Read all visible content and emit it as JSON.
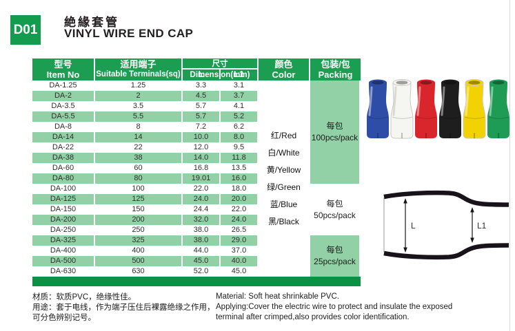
{
  "page": {
    "code": "D01",
    "title_zh": "絶緣套管",
    "title_en": "VINYL WIRE END CAP"
  },
  "theme": {
    "header_green": "#1b9e52",
    "light_green": "#92d1a5",
    "dark_green": "#0a9144",
    "code_box_green": "#149c4e"
  },
  "table": {
    "headers": {
      "item_no_zh": "型号",
      "item_no_en": "Item No",
      "terminals_zh": "适用端子",
      "terminals_en": "Suitable Terminals(sq)",
      "dimension": "尺寸Dimension(mm)",
      "dim_l": "L",
      "dim_l1": "L1",
      "color_zh": "颜色",
      "color_en": "Color",
      "packing_zh": "包装/包",
      "packing_en": "Packing"
    },
    "rows": [
      [
        "DA-1.25",
        "1.25",
        "3.3",
        "3.1"
      ],
      [
        "DA-2",
        "2",
        "4.5",
        "3.7"
      ],
      [
        "DA-3.5",
        "3.5",
        "5.7",
        "4.1"
      ],
      [
        "DA-5.5",
        "5.5",
        "5.7",
        "5.2"
      ],
      [
        "DA-8",
        "8",
        "7.2",
        "6.2"
      ],
      [
        "DA-14",
        "14",
        "10.0",
        "8.0"
      ],
      [
        "DA-22",
        "22",
        "12.0",
        "9.5"
      ],
      [
        "DA-38",
        "38",
        "14.0",
        "11.8"
      ],
      [
        "DA-60",
        "60",
        "16.8",
        "13.5"
      ],
      [
        "DA-80",
        "80",
        "19.01",
        "16.0"
      ],
      [
        "DA-100",
        "100",
        "22.0",
        "18.0"
      ],
      [
        "DA-125",
        "125",
        "24.0",
        "20.0"
      ],
      [
        "DA-150",
        "150",
        "24.4",
        "22.0"
      ],
      [
        "DA-200",
        "200",
        "32.0",
        "24.0"
      ],
      [
        "DA-250",
        "250",
        "38.0",
        "26.5"
      ],
      [
        "DA-325",
        "325",
        "38.0",
        "29.0"
      ],
      [
        "DA-400",
        "400",
        "44.0",
        "37.0"
      ],
      [
        "DA-500",
        "500",
        "45.0",
        "40.0"
      ],
      [
        "DA-630",
        "630",
        "52.0",
        "45.0"
      ]
    ],
    "colors": [
      "红/Red",
      "白/White",
      "黄/Yellow",
      "绿/Green",
      "蓝/Blue",
      "黑/Black"
    ],
    "packing": [
      {
        "label_zh": "每包",
        "label_en": "100pcs/pack",
        "rows": 10,
        "highlight": true
      },
      {
        "label_zh": "每包",
        "label_en": "50pcs/pack",
        "rows": 5,
        "highlight": false
      },
      {
        "label_zh": "每包",
        "label_en": "25pcs/pack",
        "rows": 4,
        "highlight": true
      }
    ]
  },
  "caps": [
    {
      "name": "blue",
      "color": "#2e4da6"
    },
    {
      "name": "white",
      "color": "#f5f5f1"
    },
    {
      "name": "red",
      "color": "#d8262c"
    },
    {
      "name": "black",
      "color": "#1e1e1e"
    },
    {
      "name": "yellow",
      "color": "#f3d203"
    },
    {
      "name": "green",
      "color": "#1e9b55"
    }
  ],
  "diagram": {
    "label_l": "L",
    "label_l1": "L1"
  },
  "notes": {
    "zh_line1": "材质：软质PVC，绝缘性佳。",
    "zh_line2": "用途：套于电线，作为端子压住后裸露绝缘之作用，",
    "zh_line3": "可分色辨别记号。",
    "en_line1": "Material: Soft heat shrinkable PVC.",
    "en_line2": "Applying:Cover the electric wire to protect and insulate the exposed",
    "en_line3": "terminal after crimped,also provides color identification."
  }
}
